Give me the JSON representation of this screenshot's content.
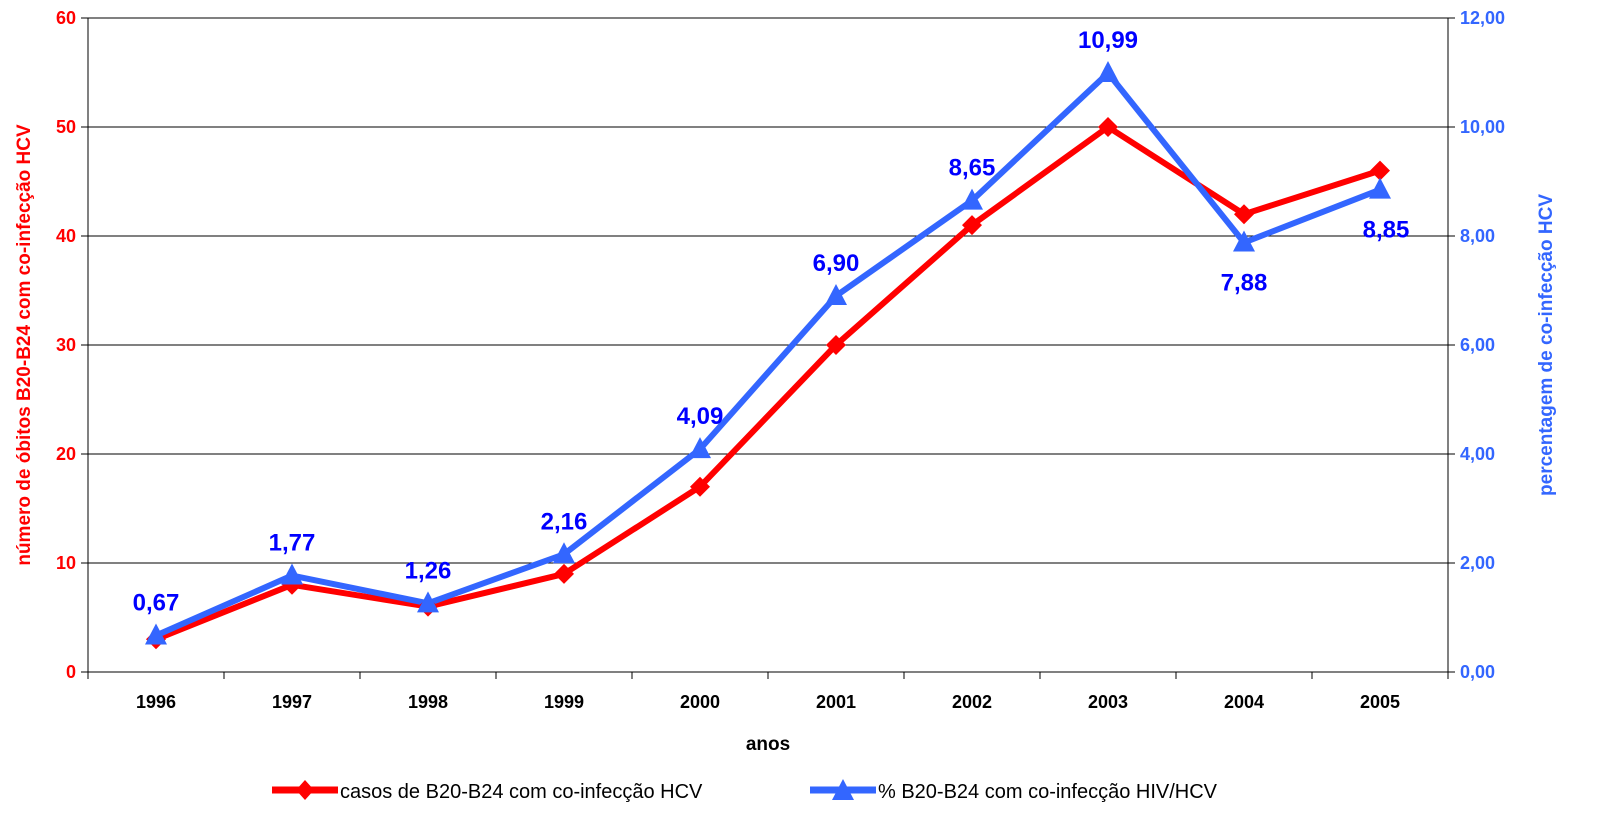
{
  "chart_data": {
    "type": "line",
    "categories": [
      "1996",
      "1997",
      "1998",
      "1999",
      "2000",
      "2001",
      "2002",
      "2003",
      "2004",
      "2005"
    ],
    "xlabel": "anos",
    "ylabel_left": "número de óbitos B20-B24 com co-infecção HCV",
    "ylabel_right": "percentagem de co-infecção HCV",
    "ylim_left": [
      0,
      60
    ],
    "ylim_right": [
      0,
      12
    ],
    "yticks_left": [
      "0",
      "10",
      "20",
      "30",
      "40",
      "50",
      "60"
    ],
    "yticks_right": [
      "0,00",
      "2,00",
      "4,00",
      "6,00",
      "8,00",
      "10,00",
      "12,00"
    ],
    "grid": true,
    "legend_position": "bottom",
    "series": [
      {
        "name": "casos de B20-B24 com co-infecção HCV",
        "axis": "left",
        "marker": "diamond",
        "color": "#ff0000",
        "values": [
          3,
          8,
          6,
          9,
          17,
          30,
          41,
          50,
          42,
          46
        ]
      },
      {
        "name": "% B20-B24 com co-infecção HIV/HCV",
        "axis": "right",
        "marker": "triangle",
        "color": "#3366ff",
        "values": [
          0.67,
          1.77,
          1.26,
          2.16,
          4.09,
          6.9,
          8.65,
          10.99,
          7.88,
          8.85
        ],
        "data_labels": [
          "0,67",
          "1,77",
          "1,26",
          "2,16",
          "4,09",
          "6,90",
          "8,65",
          "10,99",
          "7,88",
          "8,85"
        ]
      }
    ],
    "colors": {
      "left_axis_text": "#ff0000",
      "right_axis_text": "#3366ff",
      "data_label": "#0000ff",
      "axis_line": "#000000",
      "gridline": "#000000"
    }
  }
}
